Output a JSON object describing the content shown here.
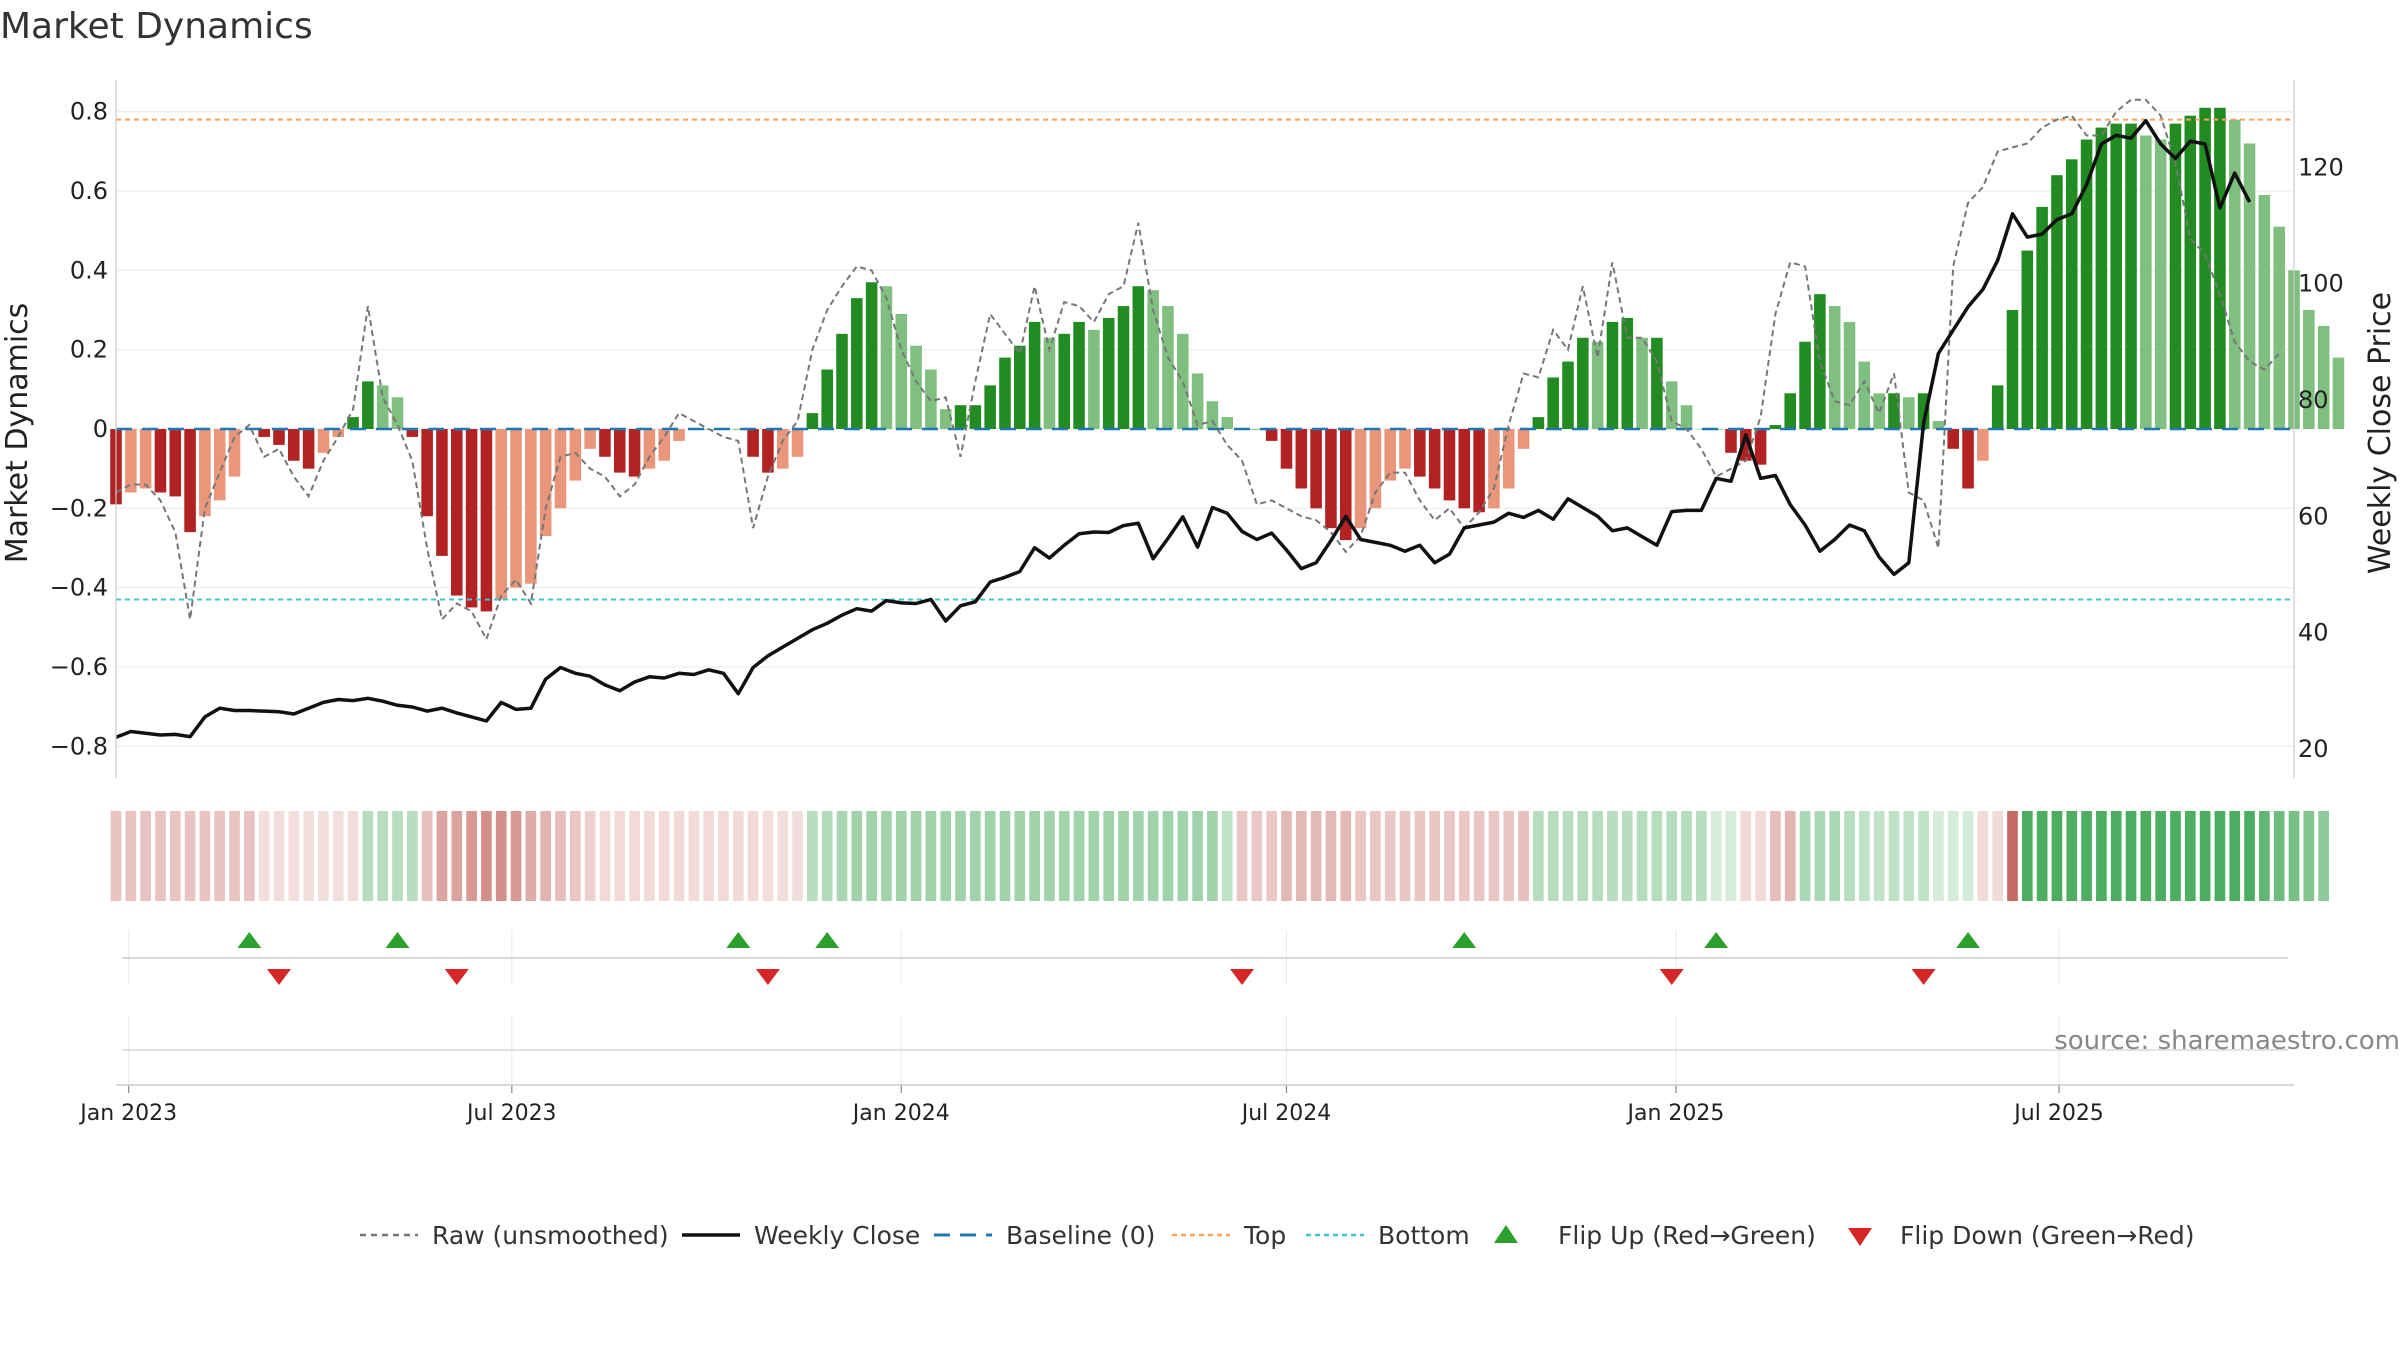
{
  "chart_data": {
    "type": "bar",
    "title": "Market Dynamics",
    "ylabel": "Market Dynamics",
    "y2label": "Weekly Close Price",
    "ylim": [
      -0.88,
      0.88
    ],
    "y2lim": [
      15,
      135
    ],
    "yticks": [
      -0.8,
      -0.6,
      -0.4,
      -0.2,
      0,
      0.2,
      0.4,
      0.6,
      0.8
    ],
    "y2ticks": [
      20,
      40,
      60,
      80,
      100,
      120
    ],
    "ytick_labels": [
      "−0.8",
      "−0.6",
      "−0.4",
      "−0.2",
      "0",
      "0.2",
      "0.4",
      "0.6",
      "0.8"
    ],
    "y2tick_labels": [
      "20",
      "40",
      "60",
      "80",
      "100",
      "120"
    ],
    "xlim": [
      "2022-12-26",
      "2025-10-20"
    ],
    "xticks": [
      "2023-01-01",
      "2023-07-01",
      "2024-01-01",
      "2024-07-01",
      "2025-01-01",
      "2025-07-01"
    ],
    "xtick_labels": [
      "Jan 2023",
      "Jul 2023",
      "Jan 2024",
      "Jul 2024",
      "Jan 2025",
      "Jul 2025"
    ],
    "start_week": "2022-12-26",
    "top_line": 0.78,
    "bottom_line": -0.43,
    "grid": true,
    "legend_position": "bottom-center",
    "colors": {
      "strong_green": "#228b22",
      "weak_green": "#7fbf7f",
      "strong_red": "#b22222",
      "weak_red": "#e9967a",
      "close_line": "#111111",
      "raw_line": "#777777",
      "baseline": "#1f77b4",
      "top": "#f4a460",
      "bottom": "#40c4d0",
      "flip_up": "#2ca02c",
      "flip_down": "#d62728"
    },
    "dynamics": [
      -0.19,
      -0.16,
      -0.15,
      -0.16,
      -0.17,
      -0.26,
      -0.22,
      -0.18,
      -0.12,
      0.0,
      -0.02,
      -0.04,
      -0.08,
      -0.1,
      -0.06,
      -0.02,
      0.03,
      0.12,
      0.11,
      0.08,
      -0.02,
      -0.22,
      -0.32,
      -0.42,
      -0.45,
      -0.46,
      -0.43,
      -0.4,
      -0.39,
      -0.27,
      -0.2,
      -0.13,
      -0.05,
      -0.07,
      -0.11,
      -0.12,
      -0.1,
      -0.08,
      -0.03,
      0.0,
      0.0,
      0.0,
      0.0,
      -0.07,
      -0.11,
      -0.1,
      -0.07,
      0.04,
      0.15,
      0.24,
      0.33,
      0.37,
      0.36,
      0.29,
      0.21,
      0.15,
      0.05,
      0.06,
      0.06,
      0.11,
      0.18,
      0.21,
      0.27,
      0.23,
      0.24,
      0.27,
      0.25,
      0.28,
      0.31,
      0.36,
      0.35,
      0.31,
      0.24,
      0.14,
      0.07,
      0.03,
      0.0,
      0.0,
      -0.03,
      -0.1,
      -0.15,
      -0.2,
      -0.25,
      -0.28,
      -0.25,
      -0.2,
      -0.13,
      -0.1,
      -0.12,
      -0.15,
      -0.18,
      -0.2,
      -0.21,
      -0.2,
      -0.15,
      -0.05,
      0.03,
      0.13,
      0.17,
      0.23,
      0.22,
      0.27,
      0.28,
      0.23,
      0.23,
      0.12,
      0.06,
      0.0,
      0.0,
      -0.06,
      -0.08,
      -0.09,
      0.01,
      0.09,
      0.22,
      0.34,
      0.31,
      0.27,
      0.17,
      0.09,
      0.09,
      0.08,
      0.09,
      0.02,
      -0.05,
      -0.15,
      -0.08,
      0.11,
      0.3,
      0.45,
      0.56,
      0.64,
      0.68,
      0.73,
      0.76,
      0.77,
      0.77,
      0.74,
      0.73,
      0.77,
      0.79,
      0.81,
      0.81,
      0.78,
      0.72,
      0.59,
      0.51,
      0.4,
      0.3,
      0.26,
      0.18
    ],
    "raw": [
      -0.16,
      -0.14,
      -0.14,
      -0.18,
      -0.26,
      -0.48,
      -0.2,
      -0.11,
      -0.02,
      0.01,
      -0.07,
      -0.05,
      -0.12,
      -0.17,
      -0.08,
      -0.02,
      0.05,
      0.31,
      0.08,
      0.01,
      -0.08,
      -0.3,
      -0.48,
      -0.44,
      -0.46,
      -0.53,
      -0.42,
      -0.38,
      -0.44,
      -0.2,
      -0.07,
      -0.06,
      -0.1,
      -0.12,
      -0.17,
      -0.14,
      -0.07,
      -0.02,
      0.04,
      0.02,
      0.0,
      -0.02,
      -0.03,
      -0.25,
      -0.12,
      -0.03,
      0.02,
      0.2,
      0.3,
      0.36,
      0.41,
      0.4,
      0.33,
      0.2,
      0.12,
      0.07,
      0.08,
      -0.07,
      0.12,
      0.29,
      0.24,
      0.19,
      0.36,
      0.2,
      0.32,
      0.31,
      0.27,
      0.34,
      0.36,
      0.52,
      0.3,
      0.18,
      0.12,
      0.01,
      0.02,
      -0.04,
      -0.08,
      -0.19,
      -0.18,
      -0.2,
      -0.22,
      -0.23,
      -0.26,
      -0.31,
      -0.27,
      -0.16,
      -0.11,
      -0.11,
      -0.18,
      -0.23,
      -0.2,
      -0.25,
      -0.21,
      -0.15,
      0.01,
      0.14,
      0.13,
      0.25,
      0.2,
      0.36,
      0.18,
      0.42,
      0.23,
      0.23,
      0.17,
      0.02,
      0.0,
      -0.05,
      -0.12,
      -0.1,
      -0.08,
      0.03,
      0.29,
      0.42,
      0.41,
      0.17,
      0.07,
      0.06,
      0.12,
      0.04,
      0.14,
      -0.16,
      -0.18,
      -0.3,
      0.41,
      0.57,
      0.61,
      0.7,
      0.71,
      0.72,
      0.76,
      0.78,
      0.79,
      0.74,
      0.74,
      0.8,
      0.83,
      0.83,
      0.79,
      0.67,
      0.48,
      0.44,
      0.34,
      0.22,
      0.17,
      0.15,
      0.19
    ],
    "close": [
      22,
      23,
      22.7,
      22.4,
      22.5,
      22.1,
      25.5,
      27,
      26.6,
      26.6,
      26.5,
      26.4,
      26,
      27,
      28,
      28.5,
      28.3,
      28.7,
      28.2,
      27.5,
      27.2,
      26.5,
      27,
      26.2,
      25.5,
      24.8,
      28,
      26.8,
      27,
      32,
      34,
      33,
      32.5,
      31,
      30,
      31.5,
      32.4,
      32.2,
      33,
      32.8,
      33.6,
      33,
      29.5,
      34,
      36,
      37.5,
      39,
      40.5,
      41.6,
      43,
      44.1,
      43.7,
      45.5,
      45.1,
      45,
      45.7,
      42,
      44.6,
      45.3,
      48.7,
      49.5,
      50.5,
      54.6,
      52.8,
      55,
      57,
      57.3,
      57.2,
      58.4,
      58.8,
      52.7,
      56.2,
      59.9,
      54.7,
      61.5,
      60.5,
      57.4,
      56,
      57.1,
      54.2,
      51,
      52,
      55.8,
      60,
      56,
      55.5,
      55,
      54,
      55,
      52,
      53.5,
      58,
      58.5,
      59,
      60.5,
      59.8,
      61,
      59.5,
      63,
      61.5,
      60,
      57.5,
      58,
      56.5,
      55,
      60.8,
      61,
      61,
      66.5,
      66,
      74,
      66.5,
      67,
      62,
      58.5,
      54,
      56,
      58.5,
      57.5,
      53,
      50,
      52,
      76,
      88,
      92,
      96,
      99,
      104,
      112,
      108,
      108.5,
      111,
      112,
      117,
      124,
      125.5,
      125,
      128,
      124,
      121.5,
      124.5,
      124,
      113,
      119,
      114
    ],
    "flip_up": [
      "2023-02-27",
      "2023-05-08",
      "2023-10-16",
      "2023-11-27",
      "2024-09-23",
      "2025-01-20",
      "2025-05-19"
    ],
    "flip_down": [
      "2023-03-13",
      "2023-06-05",
      "2023-10-30",
      "2024-06-10",
      "2024-12-30",
      "2025-04-28"
    ],
    "heat_intensity": [
      0.32,
      0.32,
      0.32,
      0.32,
      0.32,
      0.32,
      0.32,
      0.32,
      0.32,
      0.32,
      0.18,
      0.18,
      0.18,
      0.18,
      0.18,
      0.18,
      0.18,
      0.35,
      0.35,
      0.35,
      0.35,
      0.35,
      0.5,
      0.5,
      0.55,
      0.6,
      0.6,
      0.55,
      0.45,
      0.4,
      0.35,
      0.3,
      0.25,
      0.2,
      0.2,
      0.2,
      0.2,
      0.2,
      0.2,
      0.2,
      0.2,
      0.2,
      0.2,
      0.2,
      0.18,
      0.18,
      0.18,
      0.35,
      0.38,
      0.42,
      0.45,
      0.45,
      0.45,
      0.45,
      0.45,
      0.45,
      0.45,
      0.45,
      0.45,
      0.45,
      0.45,
      0.45,
      0.45,
      0.45,
      0.45,
      0.45,
      0.45,
      0.45,
      0.45,
      0.45,
      0.45,
      0.45,
      0.45,
      0.45,
      0.45,
      0.3,
      0.3,
      0.3,
      0.3,
      0.38,
      0.38,
      0.38,
      0.38,
      0.38,
      0.3,
      0.3,
      0.3,
      0.3,
      0.3,
      0.3,
      0.3,
      0.3,
      0.3,
      0.3,
      0.3,
      0.35,
      0.35,
      0.35,
      0.35,
      0.35,
      0.35,
      0.35,
      0.35,
      0.35,
      0.35,
      0.35,
      0.35,
      0.35,
      0.2,
      0.2,
      0.2,
      0.2,
      0.35,
      0.4,
      0.4,
      0.4,
      0.4,
      0.35,
      0.3,
      0.3,
      0.3,
      0.3,
      0.3,
      0.2,
      0.2,
      0.2,
      0.2,
      0.2,
      0.8,
      0.85,
      0.85,
      0.85,
      0.85,
      0.85,
      0.85,
      0.85,
      0.85,
      0.85,
      0.85,
      0.85,
      0.85,
      0.85,
      0.85,
      0.85,
      0.85,
      0.75,
      0.7,
      0.65,
      0.6,
      0.55
    ],
    "heat_sign": [
      -1,
      -1,
      -1,
      -1,
      -1,
      -1,
      -1,
      -1,
      -1,
      -1,
      -1,
      -1,
      -1,
      -1,
      -1,
      -1,
      -1,
      1,
      1,
      1,
      1,
      -1,
      -1,
      -1,
      -1,
      -1,
      -1,
      -1,
      -1,
      -1,
      -1,
      -1,
      -1,
      -1,
      -1,
      -1,
      -1,
      -1,
      -1,
      -1,
      -1,
      -1,
      -1,
      -1,
      -1,
      -1,
      -1,
      1,
      1,
      1,
      1,
      1,
      1,
      1,
      1,
      1,
      1,
      1,
      1,
      1,
      1,
      1,
      1,
      1,
      1,
      1,
      1,
      1,
      1,
      1,
      1,
      1,
      1,
      1,
      1,
      1,
      -1,
      -1,
      -1,
      -1,
      -1,
      -1,
      -1,
      -1,
      -1,
      -1,
      -1,
      -1,
      -1,
      -1,
      -1,
      -1,
      -1,
      -1,
      -1,
      -1,
      1,
      1,
      1,
      1,
      1,
      1,
      1,
      1,
      1,
      1,
      1,
      1,
      1,
      1,
      -1,
      -1,
      -1,
      -1,
      1,
      1,
      1,
      1,
      1,
      1,
      1,
      1,
      1,
      1,
      1,
      1,
      -1,
      -1,
      -1,
      1,
      1,
      1,
      1,
      1,
      1,
      1,
      1,
      1,
      1,
      1,
      1,
      1,
      1,
      1,
      1,
      1,
      1,
      1,
      1,
      1,
      1,
      1
    ]
  },
  "legend": {
    "raw": "Raw (unsmoothed)",
    "close": "Weekly Close",
    "baseline": "Baseline (0)",
    "top": "Top",
    "bottom": "Bottom",
    "flip_up": "Flip Up (Red→Green)",
    "flip_down": "Flip Down (Green→Red)"
  },
  "source": "source: sharemaestro.com"
}
